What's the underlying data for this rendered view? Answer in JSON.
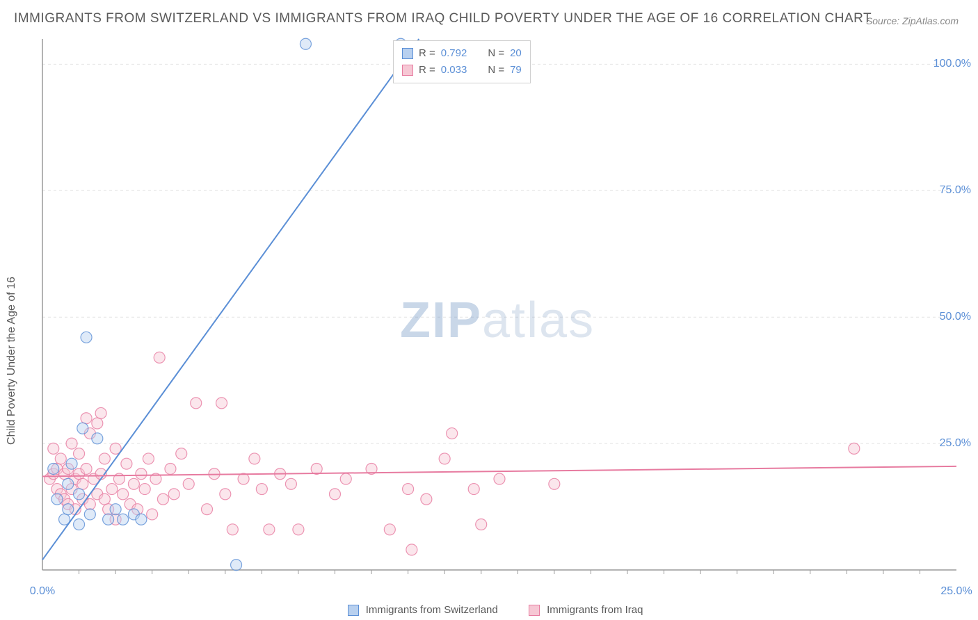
{
  "title": "IMMIGRANTS FROM SWITZERLAND VS IMMIGRANTS FROM IRAQ CHILD POVERTY UNDER THE AGE OF 16 CORRELATION CHART",
  "source": "Source: ZipAtlas.com",
  "y_axis_label": "Child Poverty Under the Age of 16",
  "watermark_bold": "ZIP",
  "watermark_light": "atlas",
  "chart": {
    "type": "scatter-with-regression",
    "xlim": [
      0,
      25
    ],
    "ylim": [
      0,
      105
    ],
    "xtick_labels": [
      "0.0%",
      "25.0%"
    ],
    "xtick_positions": [
      0,
      25
    ],
    "ytick_labels": [
      "25.0%",
      "50.0%",
      "75.0%",
      "100.0%"
    ],
    "ytick_positions": [
      25,
      50,
      75,
      100
    ],
    "minor_xticks": [
      1,
      2,
      3,
      4,
      5,
      6,
      7,
      8,
      9,
      10,
      11,
      12,
      13,
      14,
      15,
      16,
      17,
      18,
      19,
      20,
      21,
      22,
      23,
      24
    ],
    "grid_color": "#e2e2e2",
    "axis_color": "#9a9a9a",
    "background_color": "#ffffff",
    "marker_radius": 8,
    "marker_opacity": 0.45,
    "line_width": 2
  },
  "series": [
    {
      "name": "Immigrants from Switzerland",
      "color_fill": "#b8d0ef",
      "color_stroke": "#5b8fd6",
      "r_value": "0.792",
      "n_value": "20",
      "regression": {
        "x1": 0,
        "y1": 2,
        "x2": 10.3,
        "y2": 105
      },
      "points": [
        [
          0.3,
          20
        ],
        [
          0.4,
          14
        ],
        [
          0.6,
          10
        ],
        [
          0.7,
          17
        ],
        [
          0.7,
          12
        ],
        [
          0.8,
          21
        ],
        [
          1.0,
          15
        ],
        [
          1.1,
          28
        ],
        [
          1.2,
          46
        ],
        [
          1.3,
          11
        ],
        [
          1.5,
          26
        ],
        [
          1.8,
          10
        ],
        [
          2.0,
          12
        ],
        [
          2.2,
          10
        ],
        [
          2.5,
          11
        ],
        [
          2.7,
          10
        ],
        [
          5.3,
          1
        ],
        [
          7.2,
          104
        ],
        [
          9.8,
          104
        ],
        [
          1.0,
          9
        ]
      ]
    },
    {
      "name": "Immigrants from Iraq",
      "color_fill": "#f6c7d4",
      "color_stroke": "#e77ba0",
      "r_value": "0.033",
      "n_value": "79",
      "regression": {
        "x1": 0,
        "y1": 18.5,
        "x2": 25,
        "y2": 20.5
      },
      "points": [
        [
          0.2,
          18
        ],
        [
          0.3,
          19
        ],
        [
          0.3,
          24
        ],
        [
          0.4,
          20
        ],
        [
          0.4,
          16
        ],
        [
          0.5,
          15
        ],
        [
          0.5,
          22
        ],
        [
          0.6,
          19
        ],
        [
          0.6,
          14
        ],
        [
          0.7,
          20
        ],
        [
          0.7,
          13
        ],
        [
          0.8,
          16
        ],
        [
          0.8,
          25
        ],
        [
          0.9,
          18
        ],
        [
          0.9,
          12
        ],
        [
          1.0,
          19
        ],
        [
          1.0,
          23
        ],
        [
          1.1,
          17
        ],
        [
          1.1,
          14
        ],
        [
          1.2,
          20
        ],
        [
          1.3,
          13
        ],
        [
          1.3,
          27
        ],
        [
          1.4,
          18
        ],
        [
          1.5,
          29
        ],
        [
          1.5,
          15
        ],
        [
          1.6,
          19
        ],
        [
          1.7,
          14
        ],
        [
          1.7,
          22
        ],
        [
          1.8,
          12
        ],
        [
          1.9,
          16
        ],
        [
          2.0,
          24
        ],
        [
          2.0,
          10
        ],
        [
          2.1,
          18
        ],
        [
          2.2,
          15
        ],
        [
          2.3,
          21
        ],
        [
          2.4,
          13
        ],
        [
          2.5,
          17
        ],
        [
          2.6,
          12
        ],
        [
          2.7,
          19
        ],
        [
          2.8,
          16
        ],
        [
          2.9,
          22
        ],
        [
          3.0,
          11
        ],
        [
          3.1,
          18
        ],
        [
          3.2,
          42
        ],
        [
          3.3,
          14
        ],
        [
          3.5,
          20
        ],
        [
          3.6,
          15
        ],
        [
          3.8,
          23
        ],
        [
          4.0,
          17
        ],
        [
          4.2,
          33
        ],
        [
          4.5,
          12
        ],
        [
          4.7,
          19
        ],
        [
          4.9,
          33
        ],
        [
          5.0,
          15
        ],
        [
          5.2,
          8
        ],
        [
          5.5,
          18
        ],
        [
          5.8,
          22
        ],
        [
          6.0,
          16
        ],
        [
          6.2,
          8
        ],
        [
          6.5,
          19
        ],
        [
          6.8,
          17
        ],
        [
          7.0,
          8
        ],
        [
          7.5,
          20
        ],
        [
          8.0,
          15
        ],
        [
          8.3,
          18
        ],
        [
          9.0,
          20
        ],
        [
          9.5,
          8
        ],
        [
          10.0,
          16
        ],
        [
          10.1,
          4
        ],
        [
          10.5,
          14
        ],
        [
          11.0,
          22
        ],
        [
          11.2,
          27
        ],
        [
          11.8,
          16
        ],
        [
          12.0,
          9
        ],
        [
          12.5,
          18
        ],
        [
          14.0,
          17
        ],
        [
          22.2,
          24
        ],
        [
          1.2,
          30
        ],
        [
          1.6,
          31
        ]
      ]
    }
  ],
  "corr_box": {
    "r_label": "R =",
    "n_label": "N ="
  },
  "legend_label_1": "Immigrants from Switzerland",
  "legend_label_2": "Immigrants from Iraq"
}
